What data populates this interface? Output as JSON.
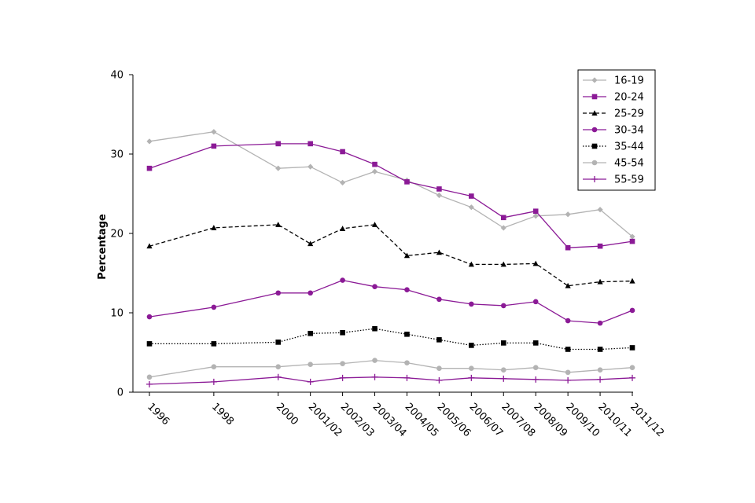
{
  "chart_data": {
    "type": "line",
    "title": "",
    "xlabel": "",
    "ylabel": "Percentage",
    "ylim": [
      0,
      40
    ],
    "yticks": [
      0,
      10,
      20,
      30,
      40
    ],
    "grid": false,
    "legend_position": "top-right",
    "categories": [
      "1996",
      "1998",
      "2000",
      "2001/02",
      "2002/03",
      "2003/04",
      "2004/05",
      "2005/06",
      "2006/07",
      "2007/08",
      "2008/09",
      "2009/10",
      "2010/11",
      "2011/12"
    ],
    "category_positions": [
      1996,
      1998,
      2000,
      2001,
      2002,
      2003,
      2004,
      2005,
      2006,
      2007,
      2008,
      2009,
      2010,
      2011
    ],
    "series": [
      {
        "name": "16-19",
        "color": "#b3b3b3",
        "dash": "solid",
        "marker": "diamond",
        "values": [
          31.6,
          32.8,
          28.2,
          28.4,
          26.4,
          27.8,
          26.7,
          24.8,
          23.3,
          20.7,
          22.2,
          22.4,
          23.0,
          19.6
        ]
      },
      {
        "name": "20-24",
        "color": "#8b1a96",
        "dash": "solid",
        "marker": "square",
        "values": [
          28.2,
          31.0,
          31.3,
          31.3,
          30.3,
          28.7,
          26.5,
          25.6,
          24.7,
          22.0,
          22.8,
          18.2,
          18.4,
          19.0
        ]
      },
      {
        "name": "25-29",
        "color": "#000000",
        "dash": "dashed",
        "marker": "triangle",
        "values": [
          18.4,
          20.7,
          21.1,
          18.7,
          20.6,
          21.1,
          17.2,
          17.6,
          16.1,
          16.1,
          16.2,
          13.4,
          13.9,
          14.0
        ]
      },
      {
        "name": "30-34",
        "color": "#8b1a96",
        "dash": "solid",
        "marker": "circle",
        "values": [
          9.5,
          10.7,
          12.5,
          12.5,
          14.1,
          13.3,
          12.9,
          11.7,
          11.1,
          10.9,
          11.4,
          9.0,
          8.7,
          10.3
        ]
      },
      {
        "name": "35-44",
        "color": "#000000",
        "dash": "dotted",
        "marker": "square",
        "values": [
          6.1,
          6.1,
          6.3,
          7.4,
          7.5,
          8.0,
          7.3,
          6.6,
          5.9,
          6.2,
          6.2,
          5.4,
          5.4,
          5.6
        ]
      },
      {
        "name": "45-54",
        "color": "#b3b3b3",
        "dash": "solid",
        "marker": "circle",
        "values": [
          1.9,
          3.2,
          3.2,
          3.5,
          3.6,
          4.0,
          3.7,
          3.0,
          3.0,
          2.8,
          3.1,
          2.5,
          2.8,
          3.1
        ]
      },
      {
        "name": "55-59",
        "color": "#8b1a96",
        "dash": "solid",
        "marker": "plus",
        "values": [
          1.0,
          1.3,
          1.9,
          1.3,
          1.8,
          1.9,
          1.8,
          1.5,
          1.8,
          1.7,
          1.6,
          1.5,
          1.6,
          1.8
        ]
      }
    ]
  }
}
